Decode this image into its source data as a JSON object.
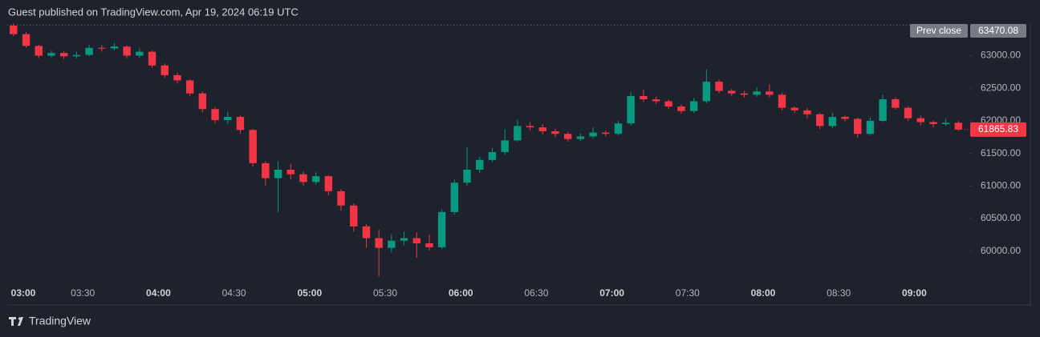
{
  "chart_data": {
    "type": "candlestick",
    "title": "Guest published on TradingView.com, Apr 19, 2024 06:19 UTC",
    "categories": [
      "03:00",
      null,
      null,
      null,
      null,
      null,
      "03:30",
      null,
      null,
      null,
      null,
      null,
      "04:00",
      null,
      null,
      null,
      null,
      null,
      "04:30",
      null,
      null,
      null,
      null,
      null,
      "05:00",
      null,
      null,
      null,
      null,
      null,
      "05:30",
      null,
      null,
      null,
      null,
      null,
      "06:00",
      null,
      null,
      null,
      null,
      null,
      "06:30",
      null,
      null,
      null,
      null,
      null,
      "07:00",
      null,
      null,
      null,
      null,
      null,
      "07:30",
      null,
      null,
      null,
      null,
      null,
      "08:00",
      null,
      null,
      null,
      null,
      null,
      "08:30",
      null,
      null,
      null,
      null,
      null,
      "09:00",
      null,
      null,
      null
    ],
    "open": [
      63460,
      63330,
      63150,
      63000,
      63040,
      62990,
      63010,
      63120,
      63110,
      63140,
      63000,
      63060,
      62850,
      62700,
      62620,
      62420,
      62180,
      62010,
      62060,
      61860,
      61350,
      61120,
      61250,
      61180,
      61060,
      61150,
      60920,
      60700,
      60380,
      60200,
      60050,
      60160,
      60200,
      60120,
      60060,
      60600,
      61050,
      61250,
      61400,
      61520,
      61700,
      61920,
      61900,
      61840,
      61800,
      61720,
      61760,
      61820,
      61800,
      61960,
      62380,
      62330,
      62300,
      62220,
      62150,
      62300,
      62600,
      62460,
      62420,
      62400,
      62450,
      62400,
      62200,
      62160,
      62100,
      61920,
      62060,
      62030,
      61800,
      62000,
      62330,
      62200,
      62040,
      61980,
      61950,
      61970
    ],
    "high": [
      63490,
      63360,
      63170,
      63080,
      63070,
      63060,
      63170,
      63160,
      63190,
      63160,
      63110,
      63080,
      62880,
      62740,
      62640,
      62450,
      62210,
      62140,
      62090,
      61880,
      61380,
      61380,
      61340,
      61220,
      61210,
      61170,
      60950,
      60730,
      60410,
      60330,
      60260,
      60300,
      60290,
      60250,
      60640,
      61100,
      61590,
      61450,
      61580,
      61870,
      62020,
      61980,
      61950,
      61880,
      61830,
      61810,
      61900,
      61850,
      62000,
      62440,
      62480,
      62370,
      62330,
      62250,
      62350,
      62790,
      62640,
      62490,
      62460,
      62510,
      62560,
      62430,
      62220,
      62200,
      62120,
      62120,
      62080,
      62050,
      62050,
      62400,
      62360,
      62220,
      62080,
      62000,
      62030,
      62000
    ],
    "low": [
      63300,
      63120,
      62960,
      62970,
      62950,
      62960,
      62990,
      63060,
      63080,
      62960,
      62970,
      62810,
      62660,
      62570,
      62380,
      62130,
      61960,
      61950,
      61800,
      61300,
      61000,
      60600,
      61100,
      61000,
      61020,
      60860,
      60620,
      60300,
      60050,
      59610,
      59980,
      60090,
      59900,
      60010,
      60030,
      60560,
      61000,
      61200,
      61370,
      61480,
      61680,
      61850,
      61790,
      61750,
      61680,
      61690,
      61730,
      61760,
      61780,
      61930,
      62290,
      62260,
      62180,
      62110,
      62120,
      62270,
      62420,
      62380,
      62360,
      62370,
      62360,
      62160,
      62120,
      62040,
      61870,
      61890,
      61990,
      61740,
      61780,
      61980,
      62170,
      62000,
      61930,
      61900,
      61920,
      61840
    ],
    "close": [
      63330,
      63150,
      63000,
      63040,
      62990,
      63010,
      63120,
      63110,
      63140,
      63000,
      63060,
      62850,
      62700,
      62620,
      62420,
      62180,
      62010,
      62060,
      61860,
      61350,
      61120,
      61250,
      61180,
      61060,
      61150,
      60920,
      60700,
      60380,
      60200,
      60050,
      60160,
      60200,
      60120,
      60060,
      60600,
      61050,
      61250,
      61400,
      61520,
      61700,
      61920,
      61900,
      61840,
      61800,
      61720,
      61760,
      61820,
      61800,
      61960,
      62380,
      62330,
      62300,
      62220,
      62150,
      62300,
      62600,
      62460,
      62420,
      62400,
      62450,
      62400,
      62200,
      62160,
      62100,
      61920,
      62060,
      62030,
      61800,
      62000,
      62330,
      62200,
      62040,
      61980,
      61950,
      61970,
      61865.83
    ],
    "up_color": "#089981",
    "down_color": "#f23645",
    "ylim": [
      59530,
      63510
    ],
    "yticks": [
      {
        "value": 60000,
        "label": "60000.00"
      },
      {
        "value": 60500,
        "label": "60500.00"
      },
      {
        "value": 61000,
        "label": "61000.00"
      },
      {
        "value": 61500,
        "label": "61500.00"
      },
      {
        "value": 62000,
        "label": "62000.00"
      },
      {
        "value": 62500,
        "label": "62500.00"
      },
      {
        "value": 63000,
        "label": "63000.00"
      }
    ],
    "prev_close_label": "Prev close",
    "prev_close": 63470.08,
    "brand": "TradingView"
  }
}
